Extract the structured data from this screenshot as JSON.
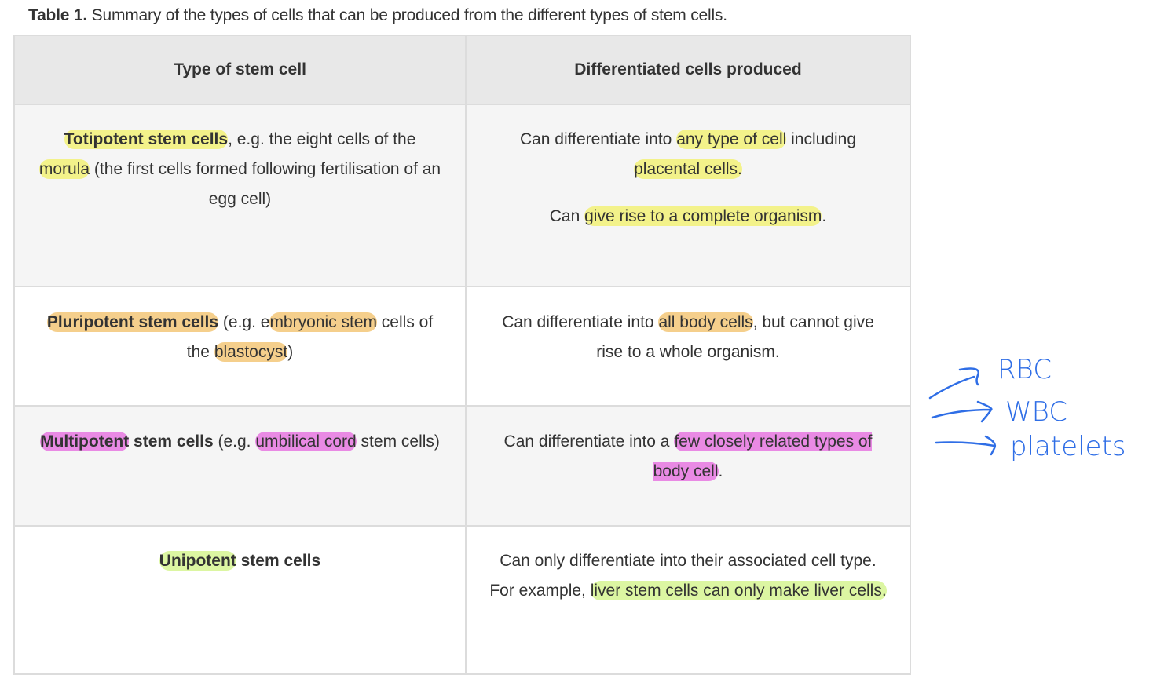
{
  "caption": {
    "label": "Table 1.",
    "text": " Summary of the types of cells that can be produced from the different types of stem cells."
  },
  "colors": {
    "yellow": "#f3f28a",
    "orange": "#f5cf8c",
    "pink": "#e98ae4",
    "green": "#dcf6a2",
    "ink": "#2f6ee6"
  },
  "table": {
    "headers": [
      "Type of stem cell",
      "Differentiated cells produced"
    ],
    "rows": [
      {
        "type": [
          [
            {
              "t": "Totipotent stem cells",
              "b": true,
              "hl": "yellow"
            },
            {
              "t": ", e.g. the eight cells of the "
            },
            {
              "t": "morula",
              "hl": "yellow"
            },
            {
              "t": " (the first cells formed following fertilisation of an egg cell)"
            }
          ]
        ],
        "produced": [
          [
            {
              "t": "Can differentiate into "
            },
            {
              "t": "any type of cell",
              "hl": "yellow"
            },
            {
              "t": " including "
            },
            {
              "t": "placental cells.",
              "hl": "yellow"
            }
          ],
          [
            {
              "t": "Can "
            },
            {
              "t": "give rise to a complete organism",
              "hl": "yellow"
            },
            {
              "t": "."
            }
          ]
        ]
      },
      {
        "type": [
          [
            {
              "t": "Pluripotent stem cells",
              "b": true,
              "hl": "orange"
            },
            {
              "t": " (e.g. e"
            },
            {
              "t": "mbryonic stem",
              "hl": "orange"
            },
            {
              "t": " cells of the "
            },
            {
              "t": "blastocyst",
              "hl": "orange"
            },
            {
              "t": ")"
            }
          ]
        ],
        "produced": [
          [
            {
              "t": "Can differentiate into "
            },
            {
              "t": "all body cells",
              "hl": "orange"
            },
            {
              "t": ", but cannot give rise to a whole organism."
            }
          ]
        ]
      },
      {
        "type": [
          [
            {
              "t": "Multipotent",
              "b": true,
              "hl": "pink"
            },
            {
              "t": " stem cells",
              "b": true
            },
            {
              "t": " (e.g. "
            },
            {
              "t": "umbilical cord",
              "hl": "pink"
            },
            {
              "t": " stem cells)"
            }
          ]
        ],
        "produced": [
          [
            {
              "t": "Can differentiate into a "
            },
            {
              "t": "few closely related types of body cell",
              "hl": "pink"
            },
            {
              "t": "."
            }
          ]
        ]
      },
      {
        "type": [
          [
            {
              "t": "Unipotent",
              "b": true,
              "hl": "green"
            },
            {
              "t": " stem cells",
              "b": true
            }
          ]
        ],
        "produced": [
          [
            {
              "t": "Can only differentiate into their associated cell type. For example, "
            },
            {
              "t": "liver stem cells can only make liver cells.",
              "hl": "green"
            }
          ]
        ]
      }
    ]
  },
  "annotation": {
    "items": [
      "RBC",
      "WBC",
      "platelets"
    ]
  }
}
